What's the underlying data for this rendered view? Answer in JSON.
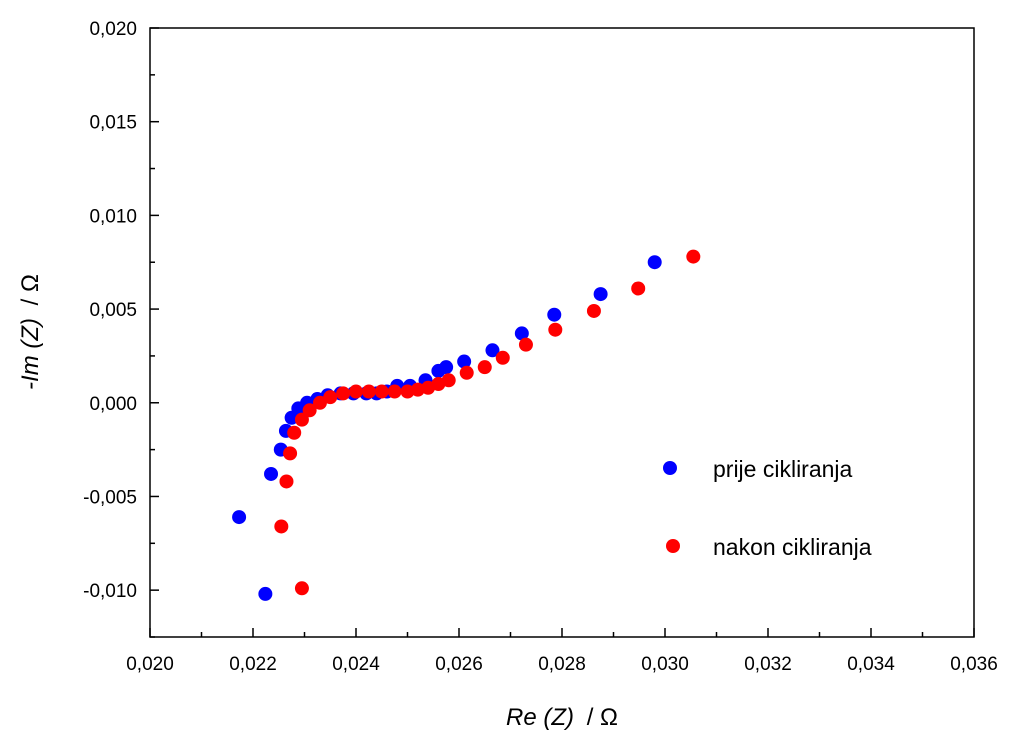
{
  "chart_data": {
    "type": "scatter",
    "title": "",
    "xlabel": {
      "main": "Re (Z)",
      "unit": "/ Ω"
    },
    "ylabel": {
      "main": "-Im (Z)",
      "unit": "/ Ω"
    },
    "xlim": [
      0.02,
      0.036
    ],
    "ylim": [
      -0.0125,
      0.02
    ],
    "x_ticks": [
      0.02,
      0.022,
      0.024,
      0.026,
      0.028,
      0.03,
      0.032,
      0.034,
      0.036
    ],
    "x_tick_labels": [
      "0,020",
      "0,022",
      "0,024",
      "0,026",
      "0,028",
      "0,030",
      "0,032",
      "0,034",
      "0,036"
    ],
    "y_ticks": [
      -0.01,
      -0.005,
      0.0,
      0.005,
      0.01,
      0.015,
      0.02
    ],
    "y_tick_labels": [
      "-0,010",
      "-0,005",
      "0,000",
      "0,005",
      "0,010",
      "0,015",
      "0,020"
    ],
    "grid": false,
    "legend_position": "right",
    "series": [
      {
        "name": "prije cikliranja",
        "color": "#0000ff",
        "points": [
          [
            0.02173,
            -0.0061
          ],
          [
            0.02224,
            -0.0102
          ],
          [
            0.02235,
            -0.0038
          ],
          [
            0.02254,
            -0.0025
          ],
          [
            0.02264,
            -0.0015
          ],
          [
            0.02275,
            -0.0008
          ],
          [
            0.02288,
            -0.0003
          ],
          [
            0.02305,
            0.0
          ],
          [
            0.02325,
            0.0002
          ],
          [
            0.02345,
            0.0004
          ],
          [
            0.0237,
            0.0005
          ],
          [
            0.02395,
            0.0005
          ],
          [
            0.0242,
            0.0005
          ],
          [
            0.0244,
            0.0005
          ],
          [
            0.0246,
            0.0006
          ],
          [
            0.0248,
            0.0009
          ],
          [
            0.02505,
            0.0009
          ],
          [
            0.02535,
            0.0012
          ],
          [
            0.0256,
            0.0017
          ],
          [
            0.02575,
            0.0019
          ],
          [
            0.0261,
            0.0022
          ],
          [
            0.02665,
            0.0028
          ],
          [
            0.02722,
            0.0037
          ],
          [
            0.02785,
            0.0047
          ],
          [
            0.02875,
            0.0058
          ],
          [
            0.0298,
            0.0075
          ]
        ]
      },
      {
        "name": "nakon cikliranja",
        "color": "#ff0000",
        "points": [
          [
            0.02295,
            -0.0099
          ],
          [
            0.02255,
            -0.0066
          ],
          [
            0.02265,
            -0.0042
          ],
          [
            0.02272,
            -0.0027
          ],
          [
            0.0228,
            -0.0016
          ],
          [
            0.02295,
            -0.0009
          ],
          [
            0.0231,
            -0.0004
          ],
          [
            0.0233,
            0.0
          ],
          [
            0.0235,
            0.0003
          ],
          [
            0.02375,
            0.0005
          ],
          [
            0.024,
            0.0006
          ],
          [
            0.02425,
            0.0006
          ],
          [
            0.0245,
            0.0006
          ],
          [
            0.02475,
            0.0006
          ],
          [
            0.025,
            0.0006
          ],
          [
            0.0252,
            0.0007
          ],
          [
            0.0254,
            0.0008
          ],
          [
            0.0256,
            0.001
          ],
          [
            0.0258,
            0.0012
          ],
          [
            0.02615,
            0.0016
          ],
          [
            0.0265,
            0.0019
          ],
          [
            0.02685,
            0.0024
          ],
          [
            0.0273,
            0.0031
          ],
          [
            0.02787,
            0.0039
          ],
          [
            0.02862,
            0.0049
          ],
          [
            0.02948,
            0.0061
          ],
          [
            0.03055,
            0.0078
          ]
        ]
      }
    ]
  }
}
